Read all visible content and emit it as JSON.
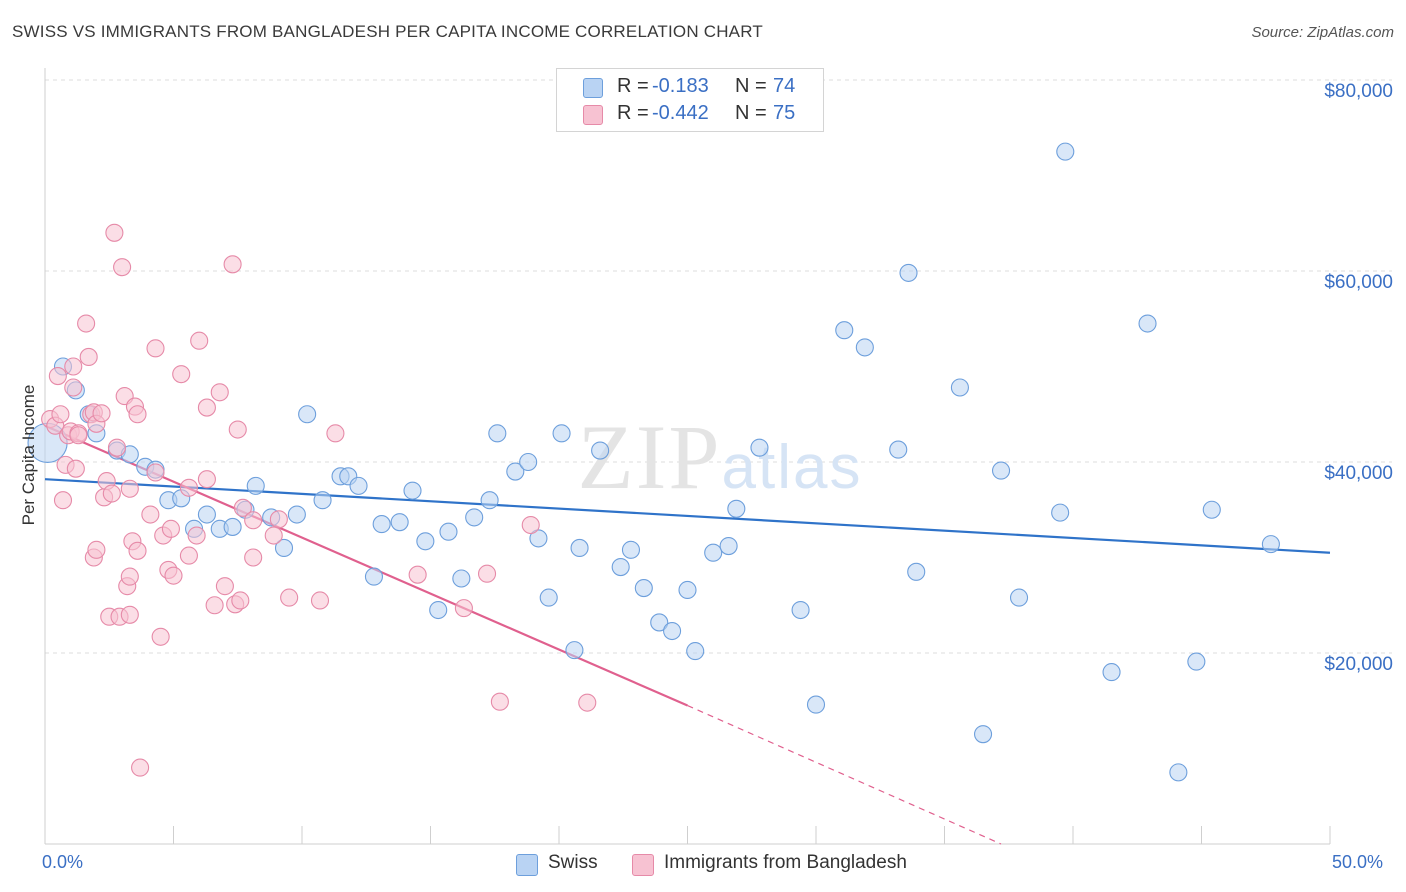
{
  "title": "SWISS VS IMMIGRANTS FROM BANGLADESH PER CAPITA INCOME CORRELATION CHART",
  "source": "Source: ZipAtlas.com",
  "watermark": "ZIPatlas",
  "legend": {
    "rows": [
      {
        "r_label": "R =",
        "r_value": "-0.183",
        "n_label": "N =",
        "n_value": "74"
      },
      {
        "r_label": "R =",
        "r_value": "-0.442",
        "n_label": "N =",
        "n_value": "75"
      }
    ]
  },
  "bottom_legend": {
    "swiss": "Swiss",
    "bangladesh": "Immigrants from Bangladesh"
  },
  "x_axis": {
    "min_label": "0.0%",
    "max_label": "50.0%"
  },
  "y_axis": {
    "label": "Per Capita Income",
    "ticks": [
      "$20,000",
      "$40,000",
      "$60,000",
      "$80,000"
    ]
  },
  "colors": {
    "swiss_fill": "#b9d3f3",
    "swiss_stroke": "#6d9fdc",
    "swiss_line": "#2f73c9",
    "bang_fill": "#f7c2d2",
    "bang_stroke": "#e68aa8",
    "bang_line": "#e0608e",
    "axis_text": "#3a6fc4",
    "grid": "#dcdcdc"
  },
  "chart_data": {
    "type": "scatter",
    "title": "SWISS VS IMMIGRANTS FROM BANGLADESH PER CAPITA INCOME CORRELATION CHART",
    "xlabel": "",
    "ylabel": "Per Capita Income",
    "xlim": [
      0,
      50
    ],
    "ylim": [
      0,
      80000
    ],
    "grid": true,
    "legend_placement": "top-center",
    "series": [
      {
        "name": "Swiss",
        "r": -0.183,
        "n": 74,
        "trend": {
          "x0": 0,
          "y0": 38200,
          "x1": 50,
          "y1": 30500
        },
        "points": [
          [
            0.1,
            42000,
            2.3
          ],
          [
            0.7,
            50000,
            1
          ],
          [
            1.2,
            47500,
            1
          ],
          [
            1.7,
            45000,
            1
          ],
          [
            2.0,
            43000,
            1
          ],
          [
            2.8,
            41200,
            1
          ],
          [
            3.3,
            40800,
            1
          ],
          [
            3.9,
            39500,
            1
          ],
          [
            4.3,
            39200,
            1
          ],
          [
            4.8,
            36000,
            1
          ],
          [
            5.3,
            36200,
            1
          ],
          [
            5.8,
            33000,
            1
          ],
          [
            6.3,
            34500,
            1
          ],
          [
            6.8,
            33000,
            1
          ],
          [
            7.3,
            33200,
            1
          ],
          [
            7.8,
            35000,
            1
          ],
          [
            8.2,
            37500,
            1
          ],
          [
            8.8,
            34200,
            1
          ],
          [
            9.3,
            31000,
            1
          ],
          [
            9.8,
            34500,
            1
          ],
          [
            10.2,
            45000,
            1
          ],
          [
            10.8,
            36000,
            1
          ],
          [
            11.5,
            38500,
            1
          ],
          [
            11.8,
            38500,
            1
          ],
          [
            12.2,
            37500,
            1
          ],
          [
            12.8,
            28000,
            1
          ],
          [
            13.1,
            33500,
            1
          ],
          [
            13.8,
            33700,
            1
          ],
          [
            14.3,
            37000,
            1
          ],
          [
            14.8,
            31700,
            1
          ],
          [
            15.3,
            24500,
            1
          ],
          [
            15.7,
            32700,
            1
          ],
          [
            16.2,
            27800,
            1
          ],
          [
            16.7,
            34200,
            1
          ],
          [
            17.3,
            36000,
            1
          ],
          [
            17.6,
            43000,
            1
          ],
          [
            18.3,
            39000,
            1
          ],
          [
            18.8,
            40000,
            1
          ],
          [
            19.2,
            32000,
            1
          ],
          [
            19.6,
            25800,
            1
          ],
          [
            20.1,
            43000,
            1
          ],
          [
            20.6,
            20300,
            1
          ],
          [
            20.8,
            31000,
            1
          ],
          [
            21.6,
            41200,
            1
          ],
          [
            22.4,
            29000,
            1
          ],
          [
            22.8,
            30800,
            1
          ],
          [
            23.3,
            26800,
            1
          ],
          [
            23.9,
            23200,
            1
          ],
          [
            24.4,
            22300,
            1
          ],
          [
            25.0,
            26600,
            1
          ],
          [
            25.3,
            20200,
            1
          ],
          [
            26.0,
            30500,
            1
          ],
          [
            26.6,
            31200,
            1
          ],
          [
            26.9,
            35100,
            1
          ],
          [
            27.8,
            41500,
            1
          ],
          [
            29.4,
            24500,
            1
          ],
          [
            30.0,
            14600,
            1
          ],
          [
            31.1,
            53800,
            1
          ],
          [
            31.9,
            52000,
            1
          ],
          [
            33.2,
            41300,
            1
          ],
          [
            33.6,
            59800,
            1
          ],
          [
            33.9,
            28500,
            1
          ],
          [
            35.6,
            47800,
            1
          ],
          [
            36.5,
            11500,
            1
          ],
          [
            37.2,
            39100,
            1
          ],
          [
            37.9,
            25800,
            1
          ],
          [
            39.5,
            34700,
            1
          ],
          [
            39.7,
            72500,
            1
          ],
          [
            41.5,
            18000,
            1
          ],
          [
            42.9,
            54500,
            1
          ],
          [
            44.1,
            7500,
            1
          ],
          [
            44.8,
            19100,
            1
          ],
          [
            45.4,
            35000,
            1
          ],
          [
            47.7,
            31400,
            1
          ]
        ]
      },
      {
        "name": "Immigrants from Bangladesh",
        "r": -0.442,
        "n": 75,
        "trend": {
          "x0": 0,
          "y0": 43800,
          "x1": 25,
          "y1": 14500,
          "dash_to_x": 37.2,
          "dash_to_y": 0
        },
        "points": [
          [
            0.2,
            44500,
            1
          ],
          [
            0.4,
            43800,
            1
          ],
          [
            0.5,
            49000,
            1
          ],
          [
            0.6,
            45000,
            1
          ],
          [
            0.7,
            36000,
            1
          ],
          [
            0.8,
            39700,
            1
          ],
          [
            0.9,
            42800,
            1
          ],
          [
            1.0,
            43200,
            1
          ],
          [
            1.1,
            50000,
            1
          ],
          [
            1.1,
            47800,
            1
          ],
          [
            1.2,
            39300,
            1
          ],
          [
            1.3,
            43000,
            1
          ],
          [
            1.6,
            54500,
            1
          ],
          [
            1.7,
            51000,
            1
          ],
          [
            1.8,
            45000,
            1
          ],
          [
            1.9,
            45200,
            1
          ],
          [
            2.0,
            44000,
            1
          ],
          [
            1.9,
            30000,
            1
          ],
          [
            2.0,
            30800,
            1
          ],
          [
            2.3,
            36300,
            1
          ],
          [
            2.4,
            38000,
            1
          ],
          [
            2.6,
            36700,
            1
          ],
          [
            2.5,
            23800,
            1
          ],
          [
            2.7,
            64000,
            1
          ],
          [
            2.8,
            41500,
            1
          ],
          [
            2.9,
            23800,
            1
          ],
          [
            3.0,
            60400,
            1
          ],
          [
            3.1,
            46900,
            1
          ],
          [
            3.2,
            27000,
            1
          ],
          [
            3.3,
            24000,
            1
          ],
          [
            3.3,
            28000,
            1
          ],
          [
            3.4,
            31700,
            1
          ],
          [
            3.5,
            45800,
            1
          ],
          [
            3.6,
            30700,
            1
          ],
          [
            3.6,
            45000,
            1
          ],
          [
            3.7,
            8000,
            1
          ],
          [
            4.1,
            34500,
            1
          ],
          [
            4.3,
            38900,
            1
          ],
          [
            4.3,
            51900,
            1
          ],
          [
            4.5,
            21700,
            1
          ],
          [
            4.6,
            32300,
            1
          ],
          [
            4.8,
            28700,
            1
          ],
          [
            5.0,
            28100,
            1
          ],
          [
            5.3,
            49200,
            1
          ],
          [
            5.6,
            30200,
            1
          ],
          [
            5.6,
            37300,
            1
          ],
          [
            5.9,
            32300,
            1
          ],
          [
            6.0,
            52700,
            1
          ],
          [
            6.3,
            38200,
            1
          ],
          [
            6.3,
            45700,
            1
          ],
          [
            6.6,
            25000,
            1
          ],
          [
            6.8,
            47300,
            1
          ],
          [
            7.0,
            27000,
            1
          ],
          [
            7.3,
            60700,
            1
          ],
          [
            7.5,
            43400,
            1
          ],
          [
            7.4,
            25100,
            1
          ],
          [
            7.6,
            25500,
            1
          ],
          [
            7.7,
            35200,
            1
          ],
          [
            8.1,
            33900,
            1
          ],
          [
            8.1,
            30000,
            1
          ],
          [
            8.9,
            32300,
            1
          ],
          [
            9.5,
            25800,
            1
          ],
          [
            10.7,
            25500,
            1
          ],
          [
            11.3,
            43000,
            1
          ],
          [
            14.5,
            28200,
            1
          ],
          [
            16.3,
            24700,
            1
          ],
          [
            17.2,
            28300,
            1
          ],
          [
            17.7,
            14900,
            1
          ],
          [
            18.9,
            33400,
            1
          ],
          [
            21.1,
            14800,
            1
          ],
          [
            9.1,
            34000,
            1
          ],
          [
            3.3,
            37200,
            1
          ],
          [
            1.3,
            42800,
            1
          ],
          [
            2.2,
            45100,
            1
          ],
          [
            4.9,
            33000,
            1
          ]
        ]
      }
    ]
  }
}
